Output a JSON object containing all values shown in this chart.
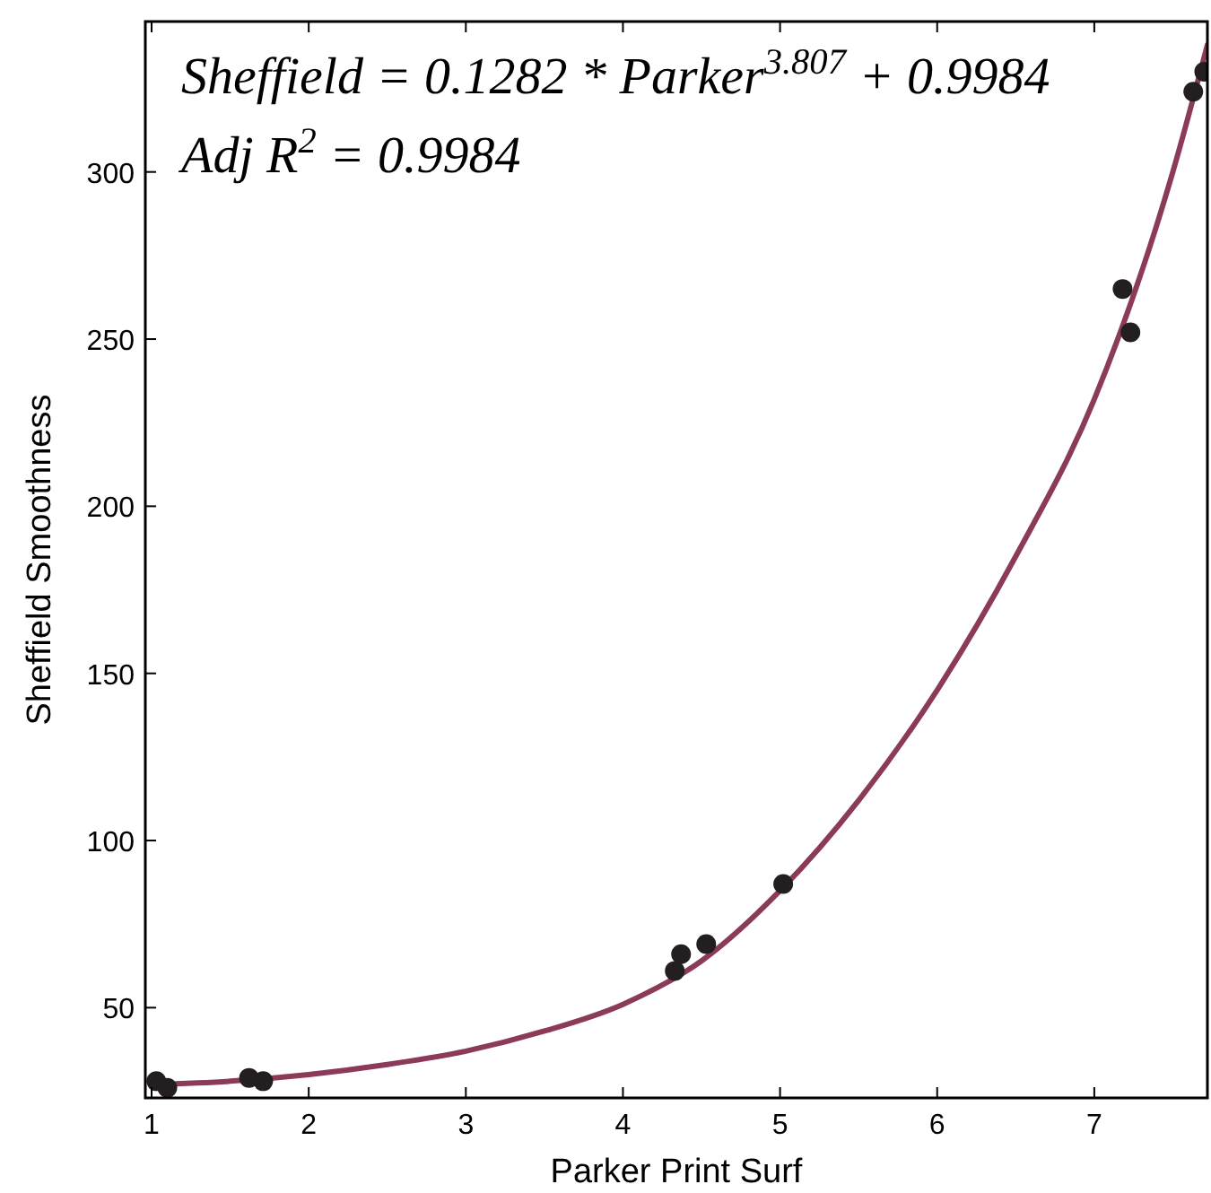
{
  "chart_data": {
    "type": "scatter",
    "xlabel": "Parker Print Surf",
    "ylabel": "Sheffield Smoothness",
    "xlim": [
      0.96,
      7.72
    ],
    "ylim": [
      23,
      345
    ],
    "xticks": [
      1,
      2,
      3,
      4,
      5,
      6,
      7
    ],
    "yticks": [
      50,
      100,
      150,
      200,
      250,
      300
    ],
    "grid": false,
    "annotations": [
      "Sheffield = 0.1282 * Parker$^{3.807}$ + 0.9984",
      "Adj R$^{2}$ = 0.9984"
    ],
    "series": [
      {
        "marker": "circle",
        "color": "#231f20",
        "x": [
          1.03,
          1.1,
          1.62,
          1.71,
          4.33,
          4.37,
          4.53,
          5.02,
          7.18,
          7.23,
          7.63,
          7.7
        ],
        "values": [
          28,
          26,
          29,
          28,
          61,
          66,
          69,
          87,
          265,
          252,
          324,
          330
        ]
      },
      {
        "type": "line",
        "color": "#8b3a5a",
        "x": [
          1,
          1.5,
          2,
          2.5,
          3,
          3.5,
          4,
          4.5,
          5,
          5.5,
          6,
          6.5,
          7,
          7.5,
          7.72
        ],
        "values": [
          27,
          28,
          30,
          33,
          37,
          43,
          51,
          64,
          85,
          112,
          145,
          185,
          232,
          300,
          338
        ]
      }
    ]
  }
}
